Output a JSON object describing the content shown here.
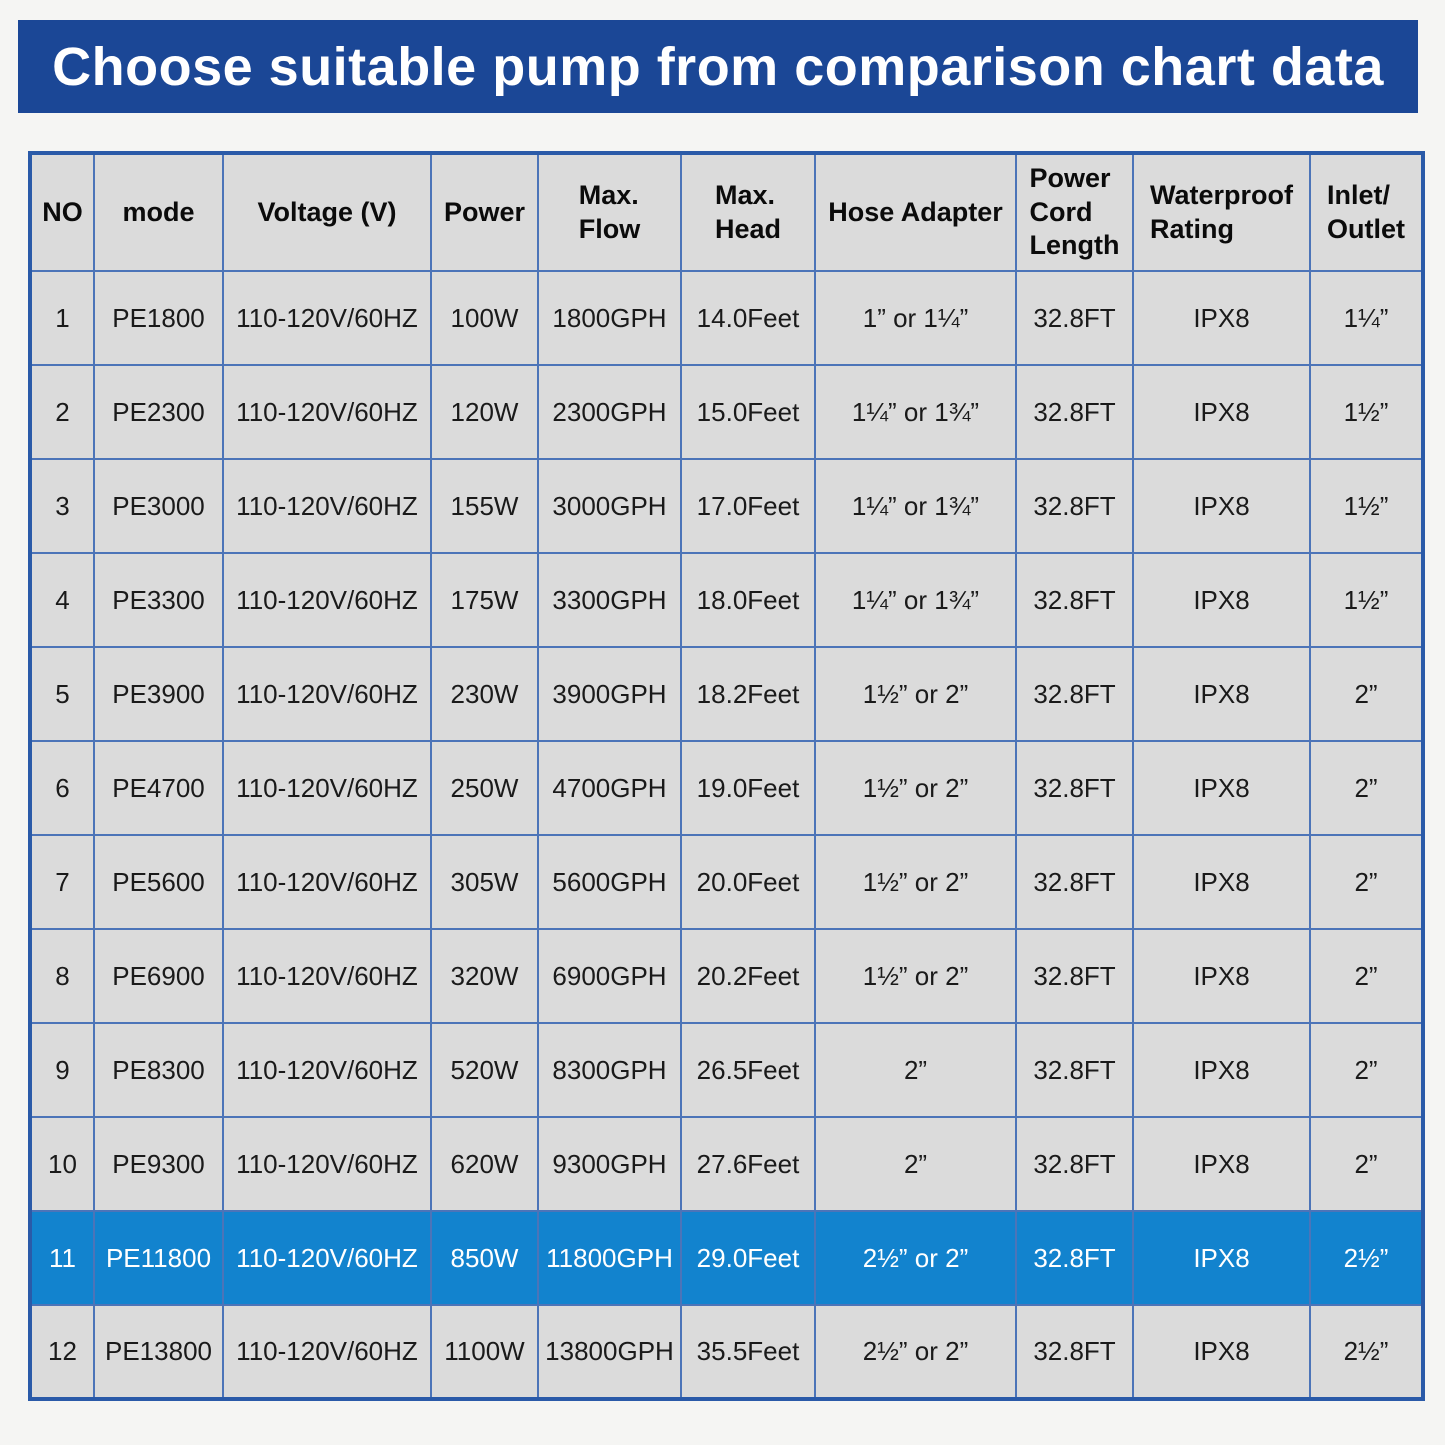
{
  "title": "Choose suitable pump from comparison chart data",
  "theme": {
    "page_bg": "#F5F5F3",
    "banner_bg": "#1B4796",
    "banner_text": "#FFFFFF",
    "table_outer_border": "#2A5AA8",
    "cell_border": "#4C74B8",
    "cell_bg": "#DBDBDB",
    "cell_text": "#1A1A1A",
    "highlight_bg": "#1283CE",
    "highlight_text": "#FFFFFF"
  },
  "table": {
    "columns": [
      {
        "key": "no",
        "label": "NO"
      },
      {
        "key": "mode",
        "label": "mode"
      },
      {
        "key": "voltage",
        "label": "Voltage (V)"
      },
      {
        "key": "power",
        "label": "Power"
      },
      {
        "key": "max_flow",
        "label": "Max.\nFlow"
      },
      {
        "key": "max_head",
        "label": "Max.\nHead"
      },
      {
        "key": "hose_adapter",
        "label": "Hose Adapter"
      },
      {
        "key": "cord_length",
        "label": "Power\nCord\nLength"
      },
      {
        "key": "waterproof",
        "label": "Waterproof\nRating"
      },
      {
        "key": "inlet_outlet",
        "label": "Inlet/\nOutlet"
      }
    ],
    "rows": [
      {
        "no": "1",
        "mode": "PE1800",
        "voltage": "110-120V/60HZ",
        "power": "100W",
        "max_flow": "1800GPH",
        "max_head": "14.0Feet",
        "hose_adapter": "1” or 1¼”",
        "cord_length": "32.8FT",
        "waterproof": "IPX8",
        "inlet_outlet": "1¼”",
        "highlighted": false
      },
      {
        "no": "2",
        "mode": "PE2300",
        "voltage": "110-120V/60HZ",
        "power": "120W",
        "max_flow": "2300GPH",
        "max_head": "15.0Feet",
        "hose_adapter": "1¼” or 1¾”",
        "cord_length": "32.8FT",
        "waterproof": "IPX8",
        "inlet_outlet": "1½”",
        "highlighted": false
      },
      {
        "no": "3",
        "mode": "PE3000",
        "voltage": "110-120V/60HZ",
        "power": "155W",
        "max_flow": "3000GPH",
        "max_head": "17.0Feet",
        "hose_adapter": "1¼” or 1¾”",
        "cord_length": "32.8FT",
        "waterproof": "IPX8",
        "inlet_outlet": "1½”",
        "highlighted": false
      },
      {
        "no": "4",
        "mode": "PE3300",
        "voltage": "110-120V/60HZ",
        "power": "175W",
        "max_flow": "3300GPH",
        "max_head": "18.0Feet",
        "hose_adapter": "1¼” or 1¾”",
        "cord_length": "32.8FT",
        "waterproof": "IPX8",
        "inlet_outlet": "1½”",
        "highlighted": false
      },
      {
        "no": "5",
        "mode": "PE3900",
        "voltage": "110-120V/60HZ",
        "power": "230W",
        "max_flow": "3900GPH",
        "max_head": "18.2Feet",
        "hose_adapter": "1½” or 2”",
        "cord_length": "32.8FT",
        "waterproof": "IPX8",
        "inlet_outlet": "2”",
        "highlighted": false
      },
      {
        "no": "6",
        "mode": "PE4700",
        "voltage": "110-120V/60HZ",
        "power": "250W",
        "max_flow": "4700GPH",
        "max_head": "19.0Feet",
        "hose_adapter": "1½” or 2”",
        "cord_length": "32.8FT",
        "waterproof": "IPX8",
        "inlet_outlet": "2”",
        "highlighted": false
      },
      {
        "no": "7",
        "mode": "PE5600",
        "voltage": "110-120V/60HZ",
        "power": "305W",
        "max_flow": "5600GPH",
        "max_head": "20.0Feet",
        "hose_adapter": "1½” or 2”",
        "cord_length": "32.8FT",
        "waterproof": "IPX8",
        "inlet_outlet": "2”",
        "highlighted": false
      },
      {
        "no": "8",
        "mode": "PE6900",
        "voltage": "110-120V/60HZ",
        "power": "320W",
        "max_flow": "6900GPH",
        "max_head": "20.2Feet",
        "hose_adapter": "1½” or 2”",
        "cord_length": "32.8FT",
        "waterproof": "IPX8",
        "inlet_outlet": "2”",
        "highlighted": false
      },
      {
        "no": "9",
        "mode": "PE8300",
        "voltage": "110-120V/60HZ",
        "power": "520W",
        "max_flow": "8300GPH",
        "max_head": "26.5Feet",
        "hose_adapter": "2”",
        "cord_length": "32.8FT",
        "waterproof": "IPX8",
        "inlet_outlet": "2”",
        "highlighted": false
      },
      {
        "no": "10",
        "mode": "PE9300",
        "voltage": "110-120V/60HZ",
        "power": "620W",
        "max_flow": "9300GPH",
        "max_head": "27.6Feet",
        "hose_adapter": "2”",
        "cord_length": "32.8FT",
        "waterproof": "IPX8",
        "inlet_outlet": "2”",
        "highlighted": false
      },
      {
        "no": "11",
        "mode": "PE11800",
        "voltage": "110-120V/60HZ",
        "power": "850W",
        "max_flow": "11800GPH",
        "max_head": "29.0Feet",
        "hose_adapter": "2½” or 2”",
        "cord_length": "32.8FT",
        "waterproof": "IPX8",
        "inlet_outlet": "2½”",
        "highlighted": true
      },
      {
        "no": "12",
        "mode": "PE13800",
        "voltage": "110-120V/60HZ",
        "power": "1100W",
        "max_flow": "13800GPH",
        "max_head": "35.5Feet",
        "hose_adapter": "2½” or 2”",
        "cord_length": "32.8FT",
        "waterproof": "IPX8",
        "inlet_outlet": "2½”",
        "highlighted": false
      }
    ]
  }
}
